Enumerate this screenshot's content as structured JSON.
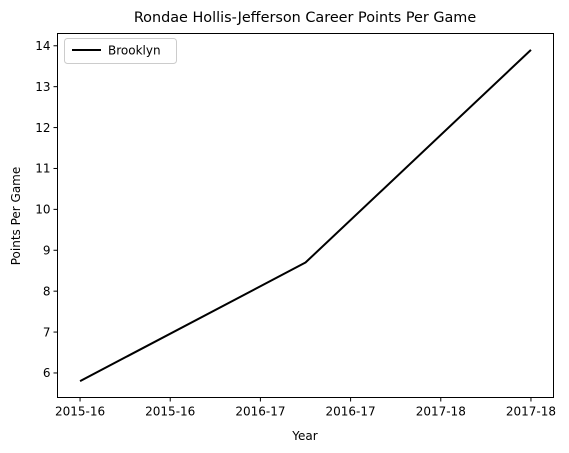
{
  "chart_data": {
    "type": "line",
    "title": "Rondae Hollis-Jefferson Career Points Per Game",
    "xlabel": "Year",
    "ylabel": "Points Per Game",
    "x_ticks": [
      "2015-16",
      "2015-16",
      "2016-17",
      "2016-17",
      "2017-18",
      "2017-18"
    ],
    "y_ticks": [
      6,
      7,
      8,
      9,
      10,
      11,
      12,
      13,
      14
    ],
    "ylim": [
      5.4,
      14.3
    ],
    "x_positions": [
      0,
      1,
      2
    ],
    "x_range": [
      -0.1,
      2.1
    ],
    "series": [
      {
        "name": "Brooklyn",
        "x": [
          "2015-16",
          "2016-17",
          "2017-18"
        ],
        "values": [
          5.8,
          8.7,
          13.9
        ],
        "color": "#000000"
      }
    ],
    "legend": {
      "position": "top-left"
    },
    "grid": false
  }
}
